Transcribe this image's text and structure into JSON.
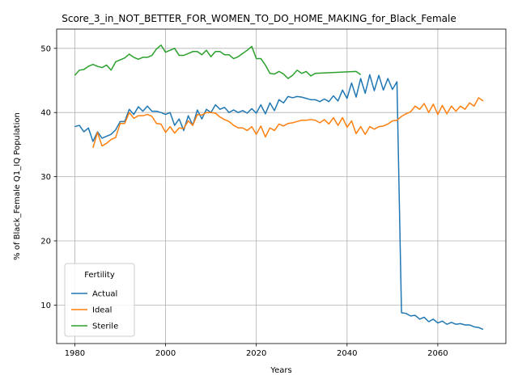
{
  "chart_data": {
    "type": "line",
    "title": "Score_3_in_NOT_BETTER_FOR_WOMEN_TO_DO_HOME_MAKING_for_Black_Female",
    "xlabel": "Years",
    "ylabel": "% of Black_Female Q1_IQ Population",
    "xlim": [
      1976,
      2075
    ],
    "ylim": [
      4.0,
      53.0
    ],
    "xticks": [
      1980,
      2000,
      2020,
      2040,
      2060
    ],
    "yticks": [
      10,
      20,
      30,
      40,
      50
    ],
    "grid": true,
    "legend": {
      "title": "Fertility",
      "placement": "lower-left"
    },
    "series": [
      {
        "name": "Actual",
        "color": "#1f77b4",
        "x": [
          1980,
          1981,
          1982,
          1983,
          1984,
          1985,
          1986,
          1987,
          1988,
          1989,
          1990,
          1991,
          1992,
          1993,
          1994,
          1995,
          1996,
          1997,
          1998,
          1999,
          2000,
          2001,
          2002,
          2003,
          2004,
          2005,
          2006,
          2007,
          2008,
          2009,
          2010,
          2011,
          2012,
          2013,
          2014,
          2015,
          2016,
          2017,
          2018,
          2019,
          2020,
          2021,
          2022,
          2023,
          2024,
          2025,
          2026,
          2027,
          2028,
          2029,
          2030,
          2031,
          2032,
          2033,
          2034,
          2035,
          2036,
          2037,
          2038,
          2039,
          2040,
          2041,
          2042,
          2043,
          2044,
          2045,
          2046,
          2047,
          2048,
          2049,
          2050,
          2051,
          2052,
          2053,
          2054,
          2055,
          2056,
          2057,
          2058,
          2059,
          2060,
          2061,
          2062,
          2063,
          2064,
          2065,
          2066,
          2067,
          2068,
          2069,
          2070
        ],
        "values": [
          37.8,
          38.0,
          37.0,
          37.6,
          35.5,
          37.0,
          36.0,
          36.3,
          36.6,
          37.3,
          38.6,
          38.6,
          40.5,
          39.7,
          40.9,
          40.2,
          41.0,
          40.2,
          40.2,
          40.0,
          39.7,
          40.0,
          38.0,
          39.0,
          37.2,
          39.5,
          38.0,
          40.4,
          39.0,
          40.5,
          40.0,
          41.2,
          40.5,
          40.8,
          40.0,
          40.4,
          40.0,
          40.3,
          39.9,
          40.6,
          39.9,
          41.2,
          39.8,
          41.5,
          40.3,
          42.0,
          41.5,
          42.5,
          42.3,
          42.5,
          42.4,
          42.2,
          42.0,
          42.0,
          41.7,
          42.1,
          41.7,
          42.6,
          41.8,
          43.5,
          42.2,
          44.6,
          42.4,
          45.3,
          43.0,
          45.9,
          43.4,
          45.8,
          43.5,
          45.3,
          43.6,
          44.8,
          8.8,
          8.7,
          8.3,
          8.4,
          7.8,
          8.1,
          7.4,
          7.8,
          7.2,
          7.5,
          7.0,
          7.3,
          7.0,
          7.1,
          6.9,
          6.9,
          6.6,
          6.5,
          6.2
        ]
      },
      {
        "name": "Ideal",
        "color": "#ff7f0e",
        "x": [
          1984,
          1985,
          1986,
          1987,
          1988,
          1989,
          1990,
          1991,
          1992,
          1993,
          1994,
          1995,
          1996,
          1997,
          1998,
          1999,
          2000,
          2001,
          2002,
          2003,
          2004,
          2005,
          2006,
          2007,
          2008,
          2009,
          2010,
          2011,
          2012,
          2013,
          2014,
          2015,
          2016,
          2017,
          2018,
          2019,
          2020,
          2021,
          2022,
          2023,
          2024,
          2025,
          2026,
          2027,
          2028,
          2029,
          2030,
          2031,
          2032,
          2033,
          2034,
          2035,
          2036,
          2037,
          2038,
          2039,
          2040,
          2041,
          2042,
          2043,
          2044,
          2045,
          2046,
          2047,
          2048,
          2049,
          2050,
          2051,
          2052,
          2053,
          2054,
          2055,
          2056,
          2057,
          2058,
          2059,
          2060,
          2061,
          2062,
          2063,
          2064,
          2065,
          2066,
          2067,
          2068,
          2069,
          2070
        ],
        "values": [
          34.5,
          36.9,
          34.8,
          35.2,
          35.8,
          36.1,
          38.3,
          38.3,
          40.0,
          39.1,
          39.5,
          39.5,
          39.7,
          39.4,
          38.3,
          38.2,
          36.9,
          37.8,
          36.8,
          37.6,
          37.5,
          38.7,
          38.0,
          39.7,
          39.6,
          40.0,
          40.0,
          39.9,
          39.3,
          38.9,
          38.6,
          38.0,
          37.6,
          37.6,
          37.2,
          37.8,
          36.6,
          37.9,
          36.2,
          37.6,
          37.2,
          38.2,
          37.9,
          38.3,
          38.4,
          38.6,
          38.8,
          38.8,
          38.9,
          38.8,
          38.4,
          38.9,
          38.2,
          39.2,
          38.0,
          39.2,
          37.7,
          38.7,
          36.7,
          37.8,
          36.6,
          37.8,
          37.4,
          37.8,
          37.9,
          38.2,
          38.7,
          38.8,
          39.4,
          39.8,
          40.1,
          41.0,
          40.5,
          41.4,
          40.0,
          41.3,
          39.7,
          41.1,
          39.8,
          41.0,
          40.2,
          41.0,
          40.5,
          41.5,
          41.0,
          42.3,
          41.8
        ]
      },
      {
        "name": "Sterile",
        "color": "#2ca02c",
        "x": [
          1980,
          1981,
          1982,
          1983,
          1984,
          1985,
          1986,
          1987,
          1988,
          1989,
          1990,
          1991,
          1992,
          1993,
          1994,
          1995,
          1996,
          1997,
          1998,
          1999,
          2000,
          2001,
          2002,
          2003,
          2004,
          2005,
          2006,
          2007,
          2008,
          2009,
          2010,
          2011,
          2012,
          2013,
          2014,
          2015,
          2016,
          2017,
          2018,
          2019,
          2020,
          2021,
          2022,
          2023,
          2024,
          2025,
          2026,
          2027,
          2028,
          2029,
          2030,
          2031,
          2032,
          2033,
          2042,
          2043
        ],
        "values": [
          45.8,
          46.6,
          46.7,
          47.2,
          47.5,
          47.2,
          47.0,
          47.4,
          46.6,
          47.9,
          48.2,
          48.5,
          49.1,
          48.6,
          48.3,
          48.6,
          48.6,
          48.9,
          49.9,
          50.5,
          49.4,
          49.7,
          50.0,
          48.9,
          48.9,
          49.2,
          49.5,
          49.5,
          49.0,
          49.7,
          48.7,
          49.5,
          49.5,
          49.0,
          49.0,
          48.4,
          48.7,
          49.2,
          49.7,
          50.3,
          48.4,
          48.4,
          47.4,
          46.1,
          46.0,
          46.4,
          46.0,
          45.3,
          45.8,
          46.6,
          46.1,
          46.4,
          45.7,
          46.1,
          46.4,
          45.9
        ]
      }
    ]
  }
}
